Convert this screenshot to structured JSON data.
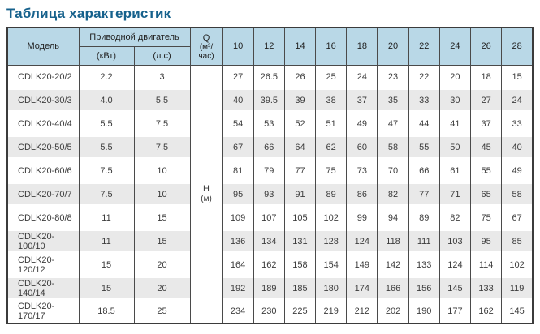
{
  "title": "Таблица характеристик",
  "table": {
    "header": {
      "model": "Модель",
      "motor_group": "Приводной двигатель",
      "motor_kw": "(кВт)",
      "motor_hp": "(л.с)",
      "q_label": "Q",
      "q_unit": "(м³/час)",
      "flow_values": [
        "10",
        "12",
        "14",
        "16",
        "18",
        "20",
        "22",
        "24",
        "26",
        "28"
      ],
      "h_label": "Н",
      "h_unit": "(м)"
    },
    "rows": [
      {
        "model": "CDLK20-20/2",
        "kw": "2.2",
        "hp": "3",
        "values": [
          "27",
          "26.5",
          "26",
          "25",
          "24",
          "23",
          "22",
          "20",
          "18",
          "15"
        ]
      },
      {
        "model": "CDLK20-30/3",
        "kw": "4.0",
        "hp": "5.5",
        "values": [
          "40",
          "39.5",
          "39",
          "38",
          "37",
          "35",
          "33",
          "30",
          "27",
          "24"
        ]
      },
      {
        "model": "CDLK20-40/4",
        "kw": "5.5",
        "hp": "7.5",
        "values": [
          "54",
          "53",
          "52",
          "51",
          "49",
          "47",
          "44",
          "41",
          "37",
          "33"
        ]
      },
      {
        "model": "CDLK20-50/5",
        "kw": "5.5",
        "hp": "7.5",
        "values": [
          "67",
          "66",
          "64",
          "62",
          "60",
          "58",
          "55",
          "50",
          "45",
          "40"
        ]
      },
      {
        "model": "CDLK20-60/6",
        "kw": "7.5",
        "hp": "10",
        "values": [
          "81",
          "79",
          "77",
          "75",
          "73",
          "70",
          "66",
          "61",
          "55",
          "49"
        ]
      },
      {
        "model": "CDLK20-70/7",
        "kw": "7.5",
        "hp": "10",
        "values": [
          "95",
          "93",
          "91",
          "89",
          "86",
          "82",
          "77",
          "71",
          "65",
          "58"
        ]
      },
      {
        "model": "CDLK20-80/8",
        "kw": "11",
        "hp": "15",
        "values": [
          "109",
          "107",
          "105",
          "102",
          "99",
          "94",
          "89",
          "82",
          "75",
          "67"
        ]
      },
      {
        "model": "CDLK20-100/10",
        "kw": "11",
        "hp": "15",
        "values": [
          "136",
          "134",
          "131",
          "128",
          "124",
          "118",
          "111",
          "103",
          "95",
          "85"
        ]
      },
      {
        "model": "CDLK20-120/12",
        "kw": "15",
        "hp": "20",
        "values": [
          "164",
          "162",
          "158",
          "154",
          "149",
          "142",
          "133",
          "124",
          "114",
          "102"
        ]
      },
      {
        "model": "CDLK20-140/14",
        "kw": "15",
        "hp": "20",
        "values": [
          "192",
          "189",
          "185",
          "180",
          "174",
          "166",
          "156",
          "145",
          "133",
          "119"
        ]
      },
      {
        "model": "CDLK20-170/17",
        "kw": "18.5",
        "hp": "25",
        "values": [
          "234",
          "230",
          "225",
          "219",
          "212",
          "202",
          "190",
          "177",
          "162",
          "145"
        ]
      }
    ],
    "colors": {
      "title_text": "#16618c",
      "header_bg": "#b9d8e7",
      "stripe_bg": "#e9e9e9",
      "border": "#4a4a4a"
    }
  }
}
